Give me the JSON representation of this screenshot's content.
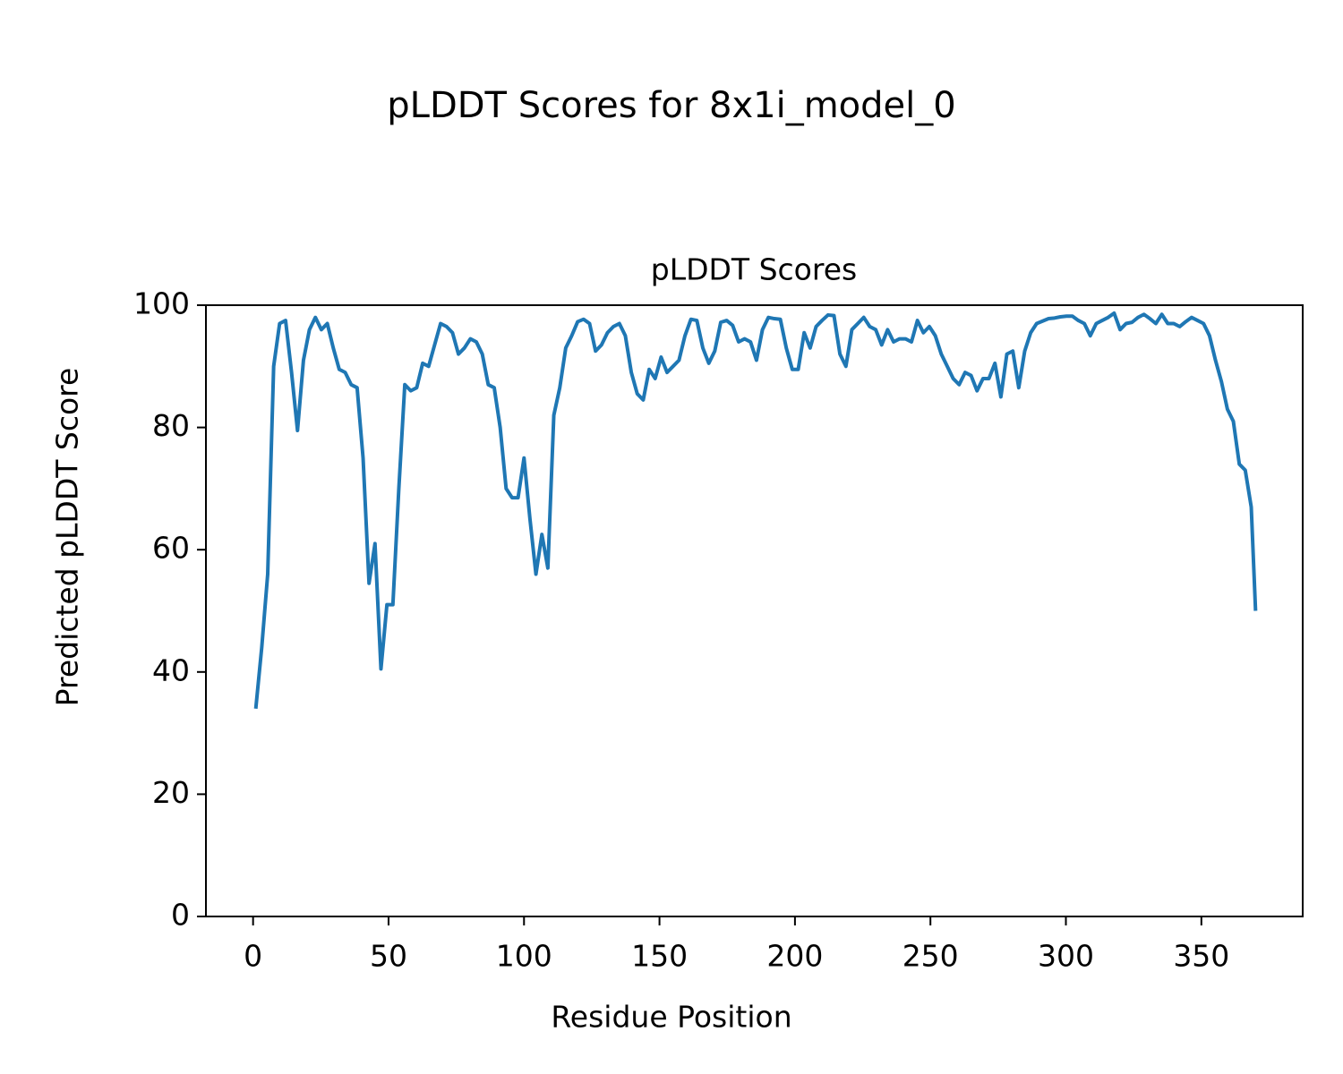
{
  "chart_data": {
    "type": "line",
    "suptitle": "pLDDT Scores for 8x1i_model_0",
    "title": "pLDDT Scores",
    "xlabel": "Residue Position",
    "ylabel": "Predicted pLDDT Score",
    "x": [
      1,
      3.2,
      5.4,
      7.6,
      9.8,
      12,
      14.2,
      16.4,
      18.6,
      20.8,
      23,
      25.2,
      27.4,
      29.6,
      31.8,
      34,
      36.2,
      38.4,
      40.6,
      42.8,
      45,
      47.2,
      49.4,
      51.6,
      53.8,
      56,
      58.2,
      60.4,
      62.6,
      64.8,
      67,
      69.2,
      71.4,
      73.6,
      75.8,
      78,
      80.2,
      82.4,
      84.6,
      86.8,
      89,
      91.2,
      93.4,
      95.6,
      97.8,
      100,
      102.2,
      104.4,
      106.6,
      108.8,
      111,
      113.2,
      115.4,
      117.6,
      119.8,
      122,
      124.2,
      126.4,
      128.6,
      130.8,
      133,
      135.2,
      137.4,
      139.6,
      141.8,
      144,
      146.2,
      148.4,
      150.6,
      152.8,
      155,
      157.2,
      159.4,
      161.6,
      163.8,
      166,
      168.2,
      170.4,
      172.6,
      174.8,
      177,
      179.2,
      181.4,
      183.6,
      185.8,
      188,
      190.2,
      192.4,
      194.6,
      196.8,
      199,
      201.2,
      203.4,
      205.6,
      207.8,
      210,
      212.2,
      214.4,
      216.6,
      218.8,
      221,
      223.2,
      225.4,
      227.6,
      229.8,
      232,
      234.2,
      236.4,
      238.6,
      240.8,
      243,
      245.2,
      247.4,
      249.6,
      251.8,
      254,
      256.2,
      258.4,
      260.6,
      262.8,
      265,
      267.2,
      269.4,
      271.6,
      273.8,
      276,
      278.2,
      280.4,
      282.6,
      284.8,
      287,
      289.2,
      291.4,
      293.6,
      295.8,
      298,
      300.2,
      302.4,
      304.6,
      306.8,
      309,
      311.2,
      313.4,
      315.6,
      317.8,
      320,
      322.2,
      324.4,
      326.6,
      328.8,
      331,
      333.2,
      335.4,
      337.6,
      339.8,
      342,
      344.2,
      346.4,
      348.6,
      350.8,
      353,
      355.2,
      357.4,
      359.6,
      361.8,
      364,
      366.2,
      368.4,
      370
    ],
    "series": [
      {
        "name": "pLDDT",
        "color": "#1f77b4",
        "values": [
          34,
          44,
          56,
          90,
          97,
          97.5,
          89,
          79.5,
          91,
          96,
          98,
          96,
          97,
          93,
          89.5,
          89,
          87,
          86.5,
          75,
          54.5,
          61,
          40.5,
          51,
          51,
          70,
          87,
          86,
          86.5,
          90.5,
          90,
          93.5,
          97,
          96.5,
          95.5,
          92,
          93,
          94.5,
          94,
          92,
          87,
          86.5,
          80,
          70,
          68.5,
          68.5,
          75,
          65,
          56,
          62.5,
          57,
          82,
          86.5,
          93,
          95,
          97.3,
          97.7,
          97,
          92.5,
          93.5,
          95.5,
          96.5,
          97,
          95,
          89,
          85.5,
          84.5,
          89.5,
          88,
          91.5,
          89,
          90,
          91,
          95,
          97.7,
          97.5,
          93,
          90.5,
          92.5,
          97.2,
          97.5,
          96.7,
          94,
          94.5,
          94,
          91,
          96,
          98,
          97.8,
          97.7,
          93,
          89.5,
          89.5,
          95.5,
          93,
          96.5,
          97.5,
          98.4,
          98.3,
          92,
          90,
          96,
          97,
          98,
          96.5,
          96,
          93.5,
          96,
          94,
          94.5,
          94.5,
          94,
          97.5,
          95.5,
          96.5,
          95,
          92,
          90,
          88,
          87,
          89,
          88.5,
          86,
          88,
          88,
          90.5,
          85,
          92,
          92.5,
          86.5,
          92.5,
          95.5,
          97,
          97.4,
          97.8,
          97.9,
          98.1,
          98.2,
          98.2,
          97.5,
          97,
          95,
          97,
          97.5,
          98,
          98.7,
          96,
          97,
          97.2,
          98,
          98.5,
          97.8,
          97,
          98.5,
          97,
          97,
          96.5,
          97.3,
          98,
          97.5,
          97,
          95,
          91,
          87.5,
          83,
          81,
          74,
          73,
          67,
          50
        ]
      }
    ],
    "xlim": [
      -17.4,
      387.4
    ],
    "xticks": [
      0,
      50,
      100,
      150,
      200,
      250,
      300,
      350
    ],
    "ylim": [
      0,
      100
    ],
    "yticks": [
      0,
      20,
      40,
      60,
      80,
      100
    ]
  }
}
